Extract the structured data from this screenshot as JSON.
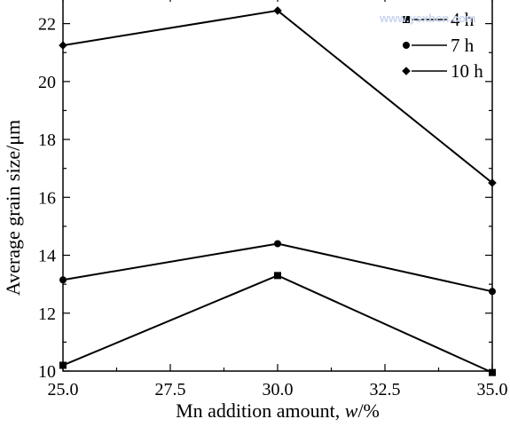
{
  "chart_data": {
    "type": "line",
    "title": "",
    "xlabel": "Mn addition amount, ",
    "xlabel_italic": "w",
    "xlabel_suffix": "/%",
    "ylabel": "Average grain size/μm",
    "xlim": [
      25.0,
      35.0
    ],
    "ylim": [
      10,
      23
    ],
    "xticks": [
      "25.0",
      "27.5",
      "30.0",
      "32.5",
      "35.0"
    ],
    "xtick_values": [
      25.0,
      27.5,
      30.0,
      32.5,
      35.0
    ],
    "yticks": [
      "10",
      "12",
      "14",
      "16",
      "18",
      "20",
      "22"
    ],
    "ytick_values": [
      10,
      12,
      14,
      16,
      18,
      20,
      22
    ],
    "grid": false,
    "legend_position": "top-right",
    "x": [
      25.0,
      30.0,
      35.0
    ],
    "series": [
      {
        "name": "4 h",
        "marker": "square",
        "values": [
          10.2,
          13.3,
          9.95
        ]
      },
      {
        "name": "7 h",
        "marker": "circle",
        "values": [
          13.15,
          14.4,
          12.75
        ]
      },
      {
        "name": "10 h",
        "marker": "diamond",
        "values": [
          21.25,
          22.45,
          16.5
        ]
      }
    ],
    "watermark": "www.ysxbcn.com",
    "color": "#000000"
  }
}
